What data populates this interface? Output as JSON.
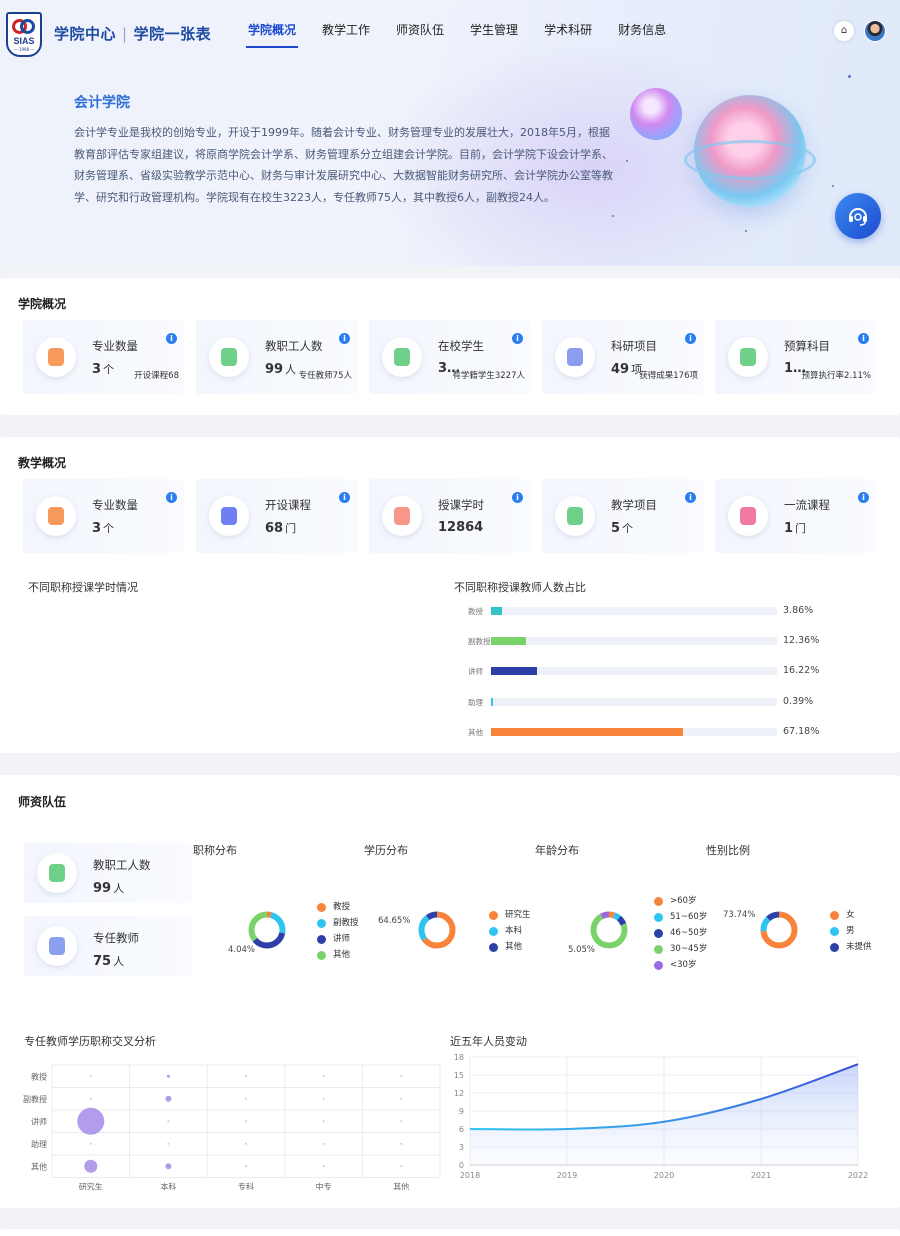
{
  "header": {
    "brand_1": "学院中心",
    "brand_sep": "|",
    "brand_2": "学院一张表",
    "logo_text": "SIAS",
    "logo_year": "— 1998 —",
    "nav": [
      "学院概况",
      "教学工作",
      "师资队伍",
      "学生管理",
      "学术科研",
      "财务信息"
    ],
    "home_icon": "⌂"
  },
  "hero": {
    "title": "会计学院",
    "description": "会计学专业是我校的创始专业，开设于1999年。随着会计专业、财务管理专业的发展壮大，2018年5月，根据教育部评估专家组建议，将原商学院会计学系、财务管理系分立组建会计学院。目前，会计学院下设会计学系、财务管理系、省级实验教学示范中心、财务与审计发展研究中心、大数据智能财务研究所、会计学院办公室等教学、研究和行政管理机构。学院现有在校生3223人，专任教师75人，其中教授6人，副教授24人。"
  },
  "overview": {
    "title": "学院概况",
    "stats": [
      {
        "icon": "major-icon",
        "label": "专业数量",
        "value": "3",
        "unit": "个",
        "sub": "开设课程68",
        "color": "#f79a5c"
      },
      {
        "icon": "staff-icon",
        "label": "教职工人数",
        "value": "99",
        "unit": "人",
        "sub": "专任教师75人",
        "color": "#6fd08a"
      },
      {
        "icon": "student-icon",
        "label": "在校学生",
        "value": "3…",
        "unit": "",
        "sub": "有学籍学生3227人",
        "color": "#6fd08a"
      },
      {
        "icon": "research-icon",
        "label": "科研项目",
        "value": "49",
        "unit": "项",
        "sub": "获得成果176项",
        "color": "#8c9cf0"
      },
      {
        "icon": "budget-icon",
        "label": "预算科目",
        "value": "1…",
        "unit": "",
        "sub": "预算执行率2.11%",
        "color": "#6fd08a"
      }
    ]
  },
  "teaching": {
    "title": "教学概况",
    "stats": [
      {
        "icon": "major-icon",
        "label": "专业数量",
        "value": "3",
        "unit": "个",
        "color": "#f79a5c"
      },
      {
        "icon": "course-icon",
        "label": "开设课程",
        "value": "68",
        "unit": "门",
        "color": "#6f7ef0"
      },
      {
        "icon": "hours-icon",
        "label": "授课学时",
        "value": "12864",
        "unit": "",
        "color": "#f7978a"
      },
      {
        "icon": "project-icon",
        "label": "教学项目",
        "value": "5",
        "unit": "个",
        "color": "#6fd08a"
      },
      {
        "icon": "first-class-icon",
        "label": "一流课程",
        "value": "1",
        "unit": "门",
        "color": "#f07aa0"
      }
    ],
    "hours_chart_title": "不同职称授课学时情况",
    "ratio_chart_title": "不同职称授课教师人数占比"
  },
  "faculty": {
    "title": "师资队伍",
    "side_stats": [
      {
        "icon": "staff-icon",
        "label": "教职工人数",
        "value": "99",
        "unit": "人",
        "color": "#6fd08a"
      },
      {
        "icon": "teacher-icon",
        "label": "专任教师",
        "value": "75",
        "unit": "人",
        "color": "#8ca0f0"
      }
    ],
    "donut_titles": [
      "职称分布",
      "学历分布",
      "年龄分布",
      "性别比例"
    ],
    "cross_title": "专任教师学历职称交叉分析",
    "change_title": "近五年人员变动"
  },
  "chart_data": [
    {
      "type": "bar",
      "title": "不同职称授课教师人数占比",
      "categories": [
        "教授",
        "副教授",
        "讲师",
        "助理",
        "其他"
      ],
      "values": [
        3.86,
        12.36,
        16.22,
        0.39,
        67.18
      ],
      "value_labels": [
        "3.86%",
        "12.36%",
        "16.22%",
        "0.39%",
        "67.18%"
      ],
      "colors": [
        "#36c3c8",
        "#7ad36a",
        "#2e3fa8",
        "#2ec4f0",
        "#f7843a"
      ],
      "orientation": "horizontal",
      "xlim": [
        0,
        100
      ]
    },
    {
      "type": "pie",
      "title": "职称分布",
      "labels": [
        "教授",
        "副教授",
        "讲师",
        "其他"
      ],
      "values": [
        4.04,
        24.0,
        36.0,
        35.96
      ],
      "colors": [
        "#f7843a",
        "#2ec4f0",
        "#2e3fa8",
        "#7ad36a"
      ],
      "callout": "4.04%"
    },
    {
      "type": "pie",
      "title": "学历分布",
      "labels": [
        "研究生",
        "本科",
        "其他"
      ],
      "values": [
        64.65,
        25.0,
        10.35
      ],
      "colors": [
        "#f7843a",
        "#2ec4f0",
        "#2e3fa8"
      ],
      "callout": "64.65%"
    },
    {
      "type": "pie",
      "title": "年龄分布",
      "labels": [
        ">60岁",
        "51~60岁",
        "46~50岁",
        "30~45岁",
        "<30岁"
      ],
      "values": [
        5.05,
        6.0,
        8.0,
        73.0,
        7.95
      ],
      "colors": [
        "#f7843a",
        "#2ec4f0",
        "#2e3fa8",
        "#7ad36a",
        "#9a6ae0"
      ],
      "callout": "5.05%"
    },
    {
      "type": "pie",
      "title": "性别比例",
      "labels": [
        "女",
        "男",
        "未提供"
      ],
      "values": [
        73.74,
        14.0,
        12.26
      ],
      "colors": [
        "#f7843a",
        "#2ec4f0",
        "#2e3fa8"
      ],
      "callout": "73.74%"
    },
    {
      "type": "scatter",
      "title": "专任教师学历职称交叉分析",
      "x_categories": [
        "研究生",
        "本科",
        "专科",
        "中专",
        "其他"
      ],
      "y_categories": [
        "教授",
        "副教授",
        "讲师",
        "助理",
        "其他"
      ],
      "points": [
        {
          "x": "研究生",
          "y": "讲师",
          "size": 27
        },
        {
          "x": "研究生",
          "y": "其他",
          "size": 13
        },
        {
          "x": "本科",
          "y": "副教授",
          "size": 6
        },
        {
          "x": "本科",
          "y": "其他",
          "size": 6
        },
        {
          "x": "本科",
          "y": "教授",
          "size": 2
        }
      ]
    },
    {
      "type": "area",
      "title": "近五年人员变动",
      "x": [
        "2018",
        "2019",
        "2020",
        "2021",
        "2022"
      ],
      "values": [
        6,
        6,
        7.2,
        11,
        16.8
      ],
      "ylim": [
        0,
        18
      ],
      "yticks": [
        0,
        3,
        6,
        9,
        12,
        15,
        18
      ]
    }
  ]
}
